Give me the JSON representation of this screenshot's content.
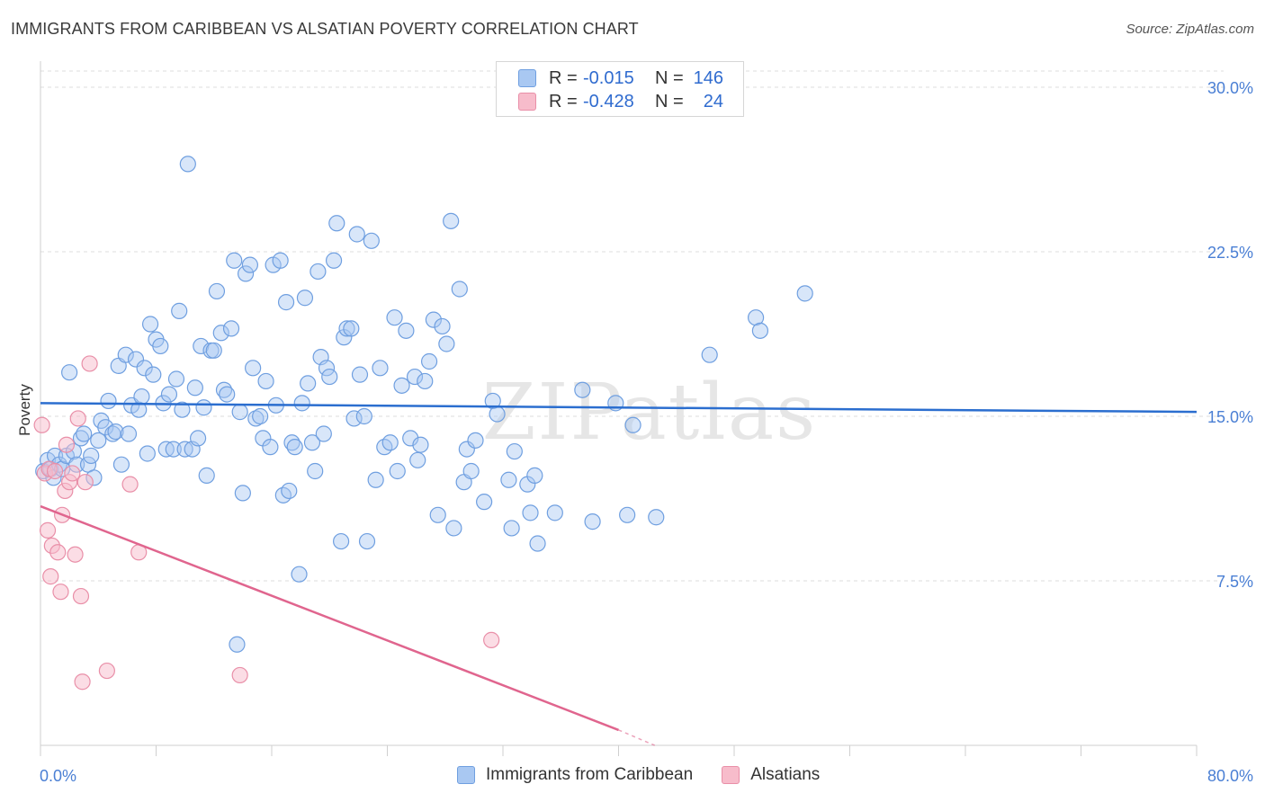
{
  "title": "IMMIGRANTS FROM CARIBBEAN VS ALSATIAN POVERTY CORRELATION CHART",
  "source": "Source: ZipAtlas.com",
  "watermark": "ZIPatlas",
  "colors": {
    "series1_fill": "#a9c8f2",
    "series1_stroke": "#6f9fe0",
    "series1_line": "#2b6ecf",
    "series2_fill": "#f7bccb",
    "series2_stroke": "#e98fa8",
    "series2_line": "#e0658e",
    "tick_text": "#4a7fd4",
    "grid": "#dcdcdc"
  },
  "legend": {
    "rows": [
      {
        "r_label": "R =",
        "r_value": "-0.015",
        "n_label": "N =",
        "n_value": "146"
      },
      {
        "r_label": "R =",
        "r_value": "-0.428",
        "n_label": "N =",
        "n_value": "24"
      }
    ]
  },
  "bottom_legend": [
    "Immigrants from Caribbean",
    "Alsatians"
  ],
  "chart_data": {
    "type": "scatter",
    "title": "IMMIGRANTS FROM CARIBBEAN VS ALSATIAN POVERTY CORRELATION CHART",
    "xlabel": "",
    "ylabel": "Poverty",
    "xlim": [
      0,
      80
    ],
    "ylim": [
      0,
      30
    ],
    "x_tick_labels": [
      "0.0%",
      "80.0%"
    ],
    "y_ticks": [
      7.5,
      15.0,
      22.5,
      30.0
    ],
    "y_tick_labels": [
      "7.5%",
      "15.0%",
      "22.5%",
      "30.0%"
    ],
    "grid": "horizontal dashed",
    "legend_placement": "top-center",
    "series": [
      {
        "name": "Immigrants from Caribbean",
        "trend": {
          "x": [
            0,
            80
          ],
          "y": [
            15.6,
            15.2
          ]
        },
        "points": [
          [
            0.2,
            12.5
          ],
          [
            0.5,
            13.0
          ],
          [
            0.7,
            12.6
          ],
          [
            0.9,
            12.2
          ],
          [
            1.0,
            13.2
          ],
          [
            1.3,
            12.8
          ],
          [
            1.5,
            12.6
          ],
          [
            1.8,
            13.2
          ],
          [
            2.0,
            17.0
          ],
          [
            2.3,
            13.4
          ],
          [
            2.5,
            12.8
          ],
          [
            2.8,
            14.0
          ],
          [
            3.0,
            14.2
          ],
          [
            3.3,
            12.8
          ],
          [
            3.5,
            13.2
          ],
          [
            3.7,
            12.2
          ],
          [
            4.0,
            13.9
          ],
          [
            4.2,
            14.8
          ],
          [
            4.5,
            14.5
          ],
          [
            4.7,
            15.7
          ],
          [
            5.0,
            14.2
          ],
          [
            5.2,
            14.3
          ],
          [
            5.4,
            17.3
          ],
          [
            5.6,
            12.8
          ],
          [
            5.9,
            17.8
          ],
          [
            6.1,
            14.2
          ],
          [
            6.3,
            15.5
          ],
          [
            6.6,
            17.6
          ],
          [
            6.8,
            15.3
          ],
          [
            7.0,
            15.9
          ],
          [
            7.2,
            17.2
          ],
          [
            7.4,
            13.3
          ],
          [
            7.6,
            19.2
          ],
          [
            7.8,
            16.9
          ],
          [
            8.0,
            18.5
          ],
          [
            8.3,
            18.2
          ],
          [
            8.5,
            15.6
          ],
          [
            8.7,
            13.5
          ],
          [
            8.9,
            16.0
          ],
          [
            9.2,
            13.5
          ],
          [
            9.4,
            16.7
          ],
          [
            9.6,
            19.8
          ],
          [
            9.8,
            15.3
          ],
          [
            10.0,
            13.5
          ],
          [
            10.2,
            26.5
          ],
          [
            10.5,
            13.5
          ],
          [
            10.7,
            16.3
          ],
          [
            10.9,
            14.0
          ],
          [
            11.1,
            18.2
          ],
          [
            11.3,
            15.4
          ],
          [
            11.5,
            12.3
          ],
          [
            11.8,
            18.0
          ],
          [
            12.0,
            18.0
          ],
          [
            12.2,
            20.7
          ],
          [
            12.5,
            18.8
          ],
          [
            12.7,
            16.2
          ],
          [
            12.9,
            16.0
          ],
          [
            13.2,
            19.0
          ],
          [
            13.4,
            22.1
          ],
          [
            13.6,
            4.6
          ],
          [
            13.8,
            15.2
          ],
          [
            14.0,
            11.5
          ],
          [
            14.2,
            21.5
          ],
          [
            14.5,
            21.9
          ],
          [
            14.7,
            17.2
          ],
          [
            14.9,
            14.9
          ],
          [
            15.2,
            15.0
          ],
          [
            15.4,
            14.0
          ],
          [
            15.6,
            16.6
          ],
          [
            15.9,
            13.6
          ],
          [
            16.1,
            21.9
          ],
          [
            16.3,
            15.5
          ],
          [
            16.6,
            22.1
          ],
          [
            16.8,
            11.4
          ],
          [
            17.0,
            20.2
          ],
          [
            17.2,
            11.6
          ],
          [
            17.4,
            13.8
          ],
          [
            17.6,
            13.6
          ],
          [
            17.9,
            7.8
          ],
          [
            18.1,
            15.6
          ],
          [
            18.3,
            20.4
          ],
          [
            18.5,
            16.5
          ],
          [
            18.8,
            13.8
          ],
          [
            19.0,
            12.5
          ],
          [
            19.2,
            21.6
          ],
          [
            19.4,
            17.7
          ],
          [
            19.6,
            14.2
          ],
          [
            19.8,
            17.2
          ],
          [
            20.0,
            16.8
          ],
          [
            20.3,
            22.1
          ],
          [
            20.5,
            23.8
          ],
          [
            20.8,
            9.3
          ],
          [
            21.0,
            18.6
          ],
          [
            21.2,
            19.0
          ],
          [
            21.5,
            19.0
          ],
          [
            21.7,
            14.9
          ],
          [
            21.9,
            23.3
          ],
          [
            22.1,
            16.9
          ],
          [
            22.4,
            15.0
          ],
          [
            22.6,
            9.3
          ],
          [
            22.9,
            23.0
          ],
          [
            23.2,
            12.1
          ],
          [
            23.5,
            17.2
          ],
          [
            23.8,
            13.6
          ],
          [
            24.2,
            13.8
          ],
          [
            24.5,
            19.5
          ],
          [
            24.7,
            12.5
          ],
          [
            25.0,
            16.4
          ],
          [
            25.3,
            18.9
          ],
          [
            25.6,
            14.0
          ],
          [
            25.9,
            16.8
          ],
          [
            26.1,
            13.0
          ],
          [
            26.3,
            13.7
          ],
          [
            26.6,
            16.6
          ],
          [
            26.9,
            17.5
          ],
          [
            27.2,
            19.4
          ],
          [
            27.5,
            10.5
          ],
          [
            27.8,
            19.1
          ],
          [
            28.1,
            18.3
          ],
          [
            28.4,
            23.9
          ],
          [
            28.6,
            9.9
          ],
          [
            29.0,
            20.8
          ],
          [
            29.3,
            12.0
          ],
          [
            29.5,
            13.5
          ],
          [
            29.8,
            12.5
          ],
          [
            30.1,
            13.9
          ],
          [
            30.7,
            11.1
          ],
          [
            31.3,
            15.7
          ],
          [
            31.6,
            15.1
          ],
          [
            32.4,
            12.1
          ],
          [
            32.6,
            9.9
          ],
          [
            32.8,
            13.4
          ],
          [
            33.7,
            11.9
          ],
          [
            33.9,
            10.6
          ],
          [
            34.2,
            12.3
          ],
          [
            34.4,
            9.2
          ],
          [
            35.6,
            10.6
          ],
          [
            37.5,
            16.2
          ],
          [
            38.2,
            10.2
          ],
          [
            39.8,
            15.6
          ],
          [
            40.6,
            10.5
          ],
          [
            41.0,
            14.6
          ],
          [
            42.6,
            10.4
          ],
          [
            46.3,
            17.8
          ],
          [
            49.5,
            19.5
          ],
          [
            49.8,
            18.9
          ],
          [
            52.9,
            20.6
          ]
        ]
      },
      {
        "name": "Alsatians",
        "trend": {
          "x": [
            0,
            40
          ],
          "y": [
            10.9,
            0.7
          ]
        },
        "trend_dashed_to": {
          "x": 42.5,
          "y": 0.0
        },
        "points": [
          [
            0.1,
            14.6
          ],
          [
            0.3,
            12.4
          ],
          [
            0.5,
            9.8
          ],
          [
            0.6,
            12.6
          ],
          [
            0.7,
            7.7
          ],
          [
            0.8,
            9.1
          ],
          [
            1.0,
            12.5
          ],
          [
            1.2,
            8.8
          ],
          [
            1.4,
            7.0
          ],
          [
            1.5,
            10.5
          ],
          [
            1.7,
            11.6
          ],
          [
            1.8,
            13.7
          ],
          [
            2.0,
            12.0
          ],
          [
            2.2,
            12.4
          ],
          [
            2.4,
            8.7
          ],
          [
            2.6,
            14.9
          ],
          [
            2.8,
            6.8
          ],
          [
            2.9,
            2.9
          ],
          [
            3.1,
            12.0
          ],
          [
            3.4,
            17.4
          ],
          [
            4.6,
            3.4
          ],
          [
            6.2,
            11.9
          ],
          [
            6.8,
            8.8
          ],
          [
            13.8,
            3.2
          ],
          [
            31.2,
            4.8
          ]
        ]
      }
    ]
  }
}
